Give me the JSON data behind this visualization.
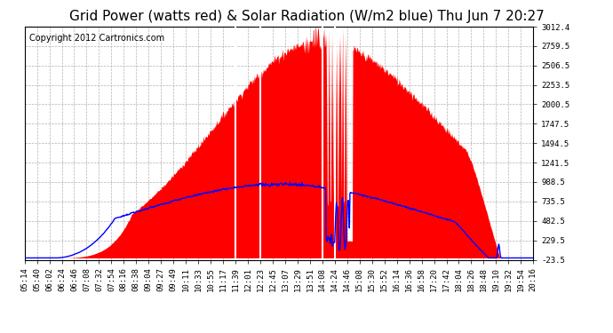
{
  "title": "Grid Power (watts red) & Solar Radiation (W/m2 blue) Thu Jun 7 20:27",
  "copyright": "Copyright 2012 Cartronics.com",
  "yticks": [
    -23.5,
    229.5,
    482.5,
    735.5,
    988.5,
    1241.5,
    1494.5,
    1747.5,
    2000.5,
    2253.5,
    2506.5,
    2759.5,
    3012.4
  ],
  "ymin": -23.5,
  "ymax": 3012.4,
  "bg_color": "#ffffff",
  "plot_bg_color": "#ffffff",
  "grid_color": "#aaaaaa",
  "red_fill_color": "red",
  "blue_line_color": "blue",
  "title_fontsize": 11,
  "copyright_fontsize": 7,
  "tick_fontsize": 6.5,
  "xtick_labels": [
    "05:14",
    "05:40",
    "06:02",
    "06:24",
    "06:46",
    "07:08",
    "07:32",
    "07:54",
    "08:16",
    "08:38",
    "09:04",
    "09:27",
    "09:49",
    "10:11",
    "10:33",
    "10:55",
    "11:17",
    "11:39",
    "12:01",
    "12:23",
    "12:45",
    "13:07",
    "13:29",
    "13:51",
    "14:08",
    "14:24",
    "14:46",
    "15:08",
    "15:30",
    "15:52",
    "16:14",
    "16:36",
    "16:58",
    "17:20",
    "17:42",
    "18:04",
    "18:26",
    "18:48",
    "19:10",
    "19:32",
    "19:54",
    "20:16"
  ],
  "white_line_tick_indices": [
    17,
    19,
    24,
    25
  ],
  "n_points": 900
}
